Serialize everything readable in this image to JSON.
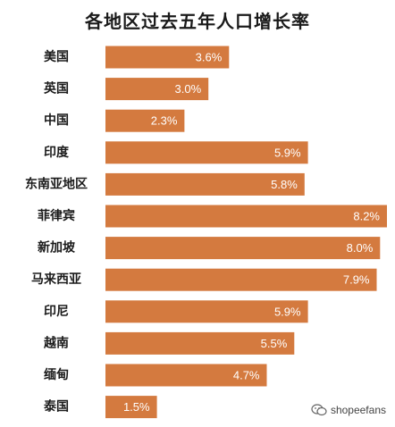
{
  "chart_data": {
    "type": "bar",
    "orientation": "horizontal",
    "title": "各地区过去五年人口增长率",
    "categories": [
      "美国",
      "英国",
      "中国",
      "印度",
      "东南亚地区",
      "菲律宾",
      "新加坡",
      "马来西亚",
      "印尼",
      "越南",
      "缅甸",
      "泰国"
    ],
    "values": [
      3.6,
      3.0,
      2.3,
      5.9,
      5.8,
      8.2,
      8.0,
      7.9,
      5.9,
      5.5,
      4.7,
      1.5
    ],
    "value_labels": [
      "3.6%",
      "3.0%",
      "2.3%",
      "5.9%",
      "5.8%",
      "8.2%",
      "8.0%",
      "7.9%",
      "5.9%",
      "5.5%",
      "4.7%",
      "1.5%"
    ],
    "xlim": [
      0,
      8.2
    ],
    "grid": false,
    "legend": "none",
    "bar_color": "#d47a3f"
  },
  "watermark": {
    "text": "shopeefans",
    "icon": "wechat-icon"
  }
}
